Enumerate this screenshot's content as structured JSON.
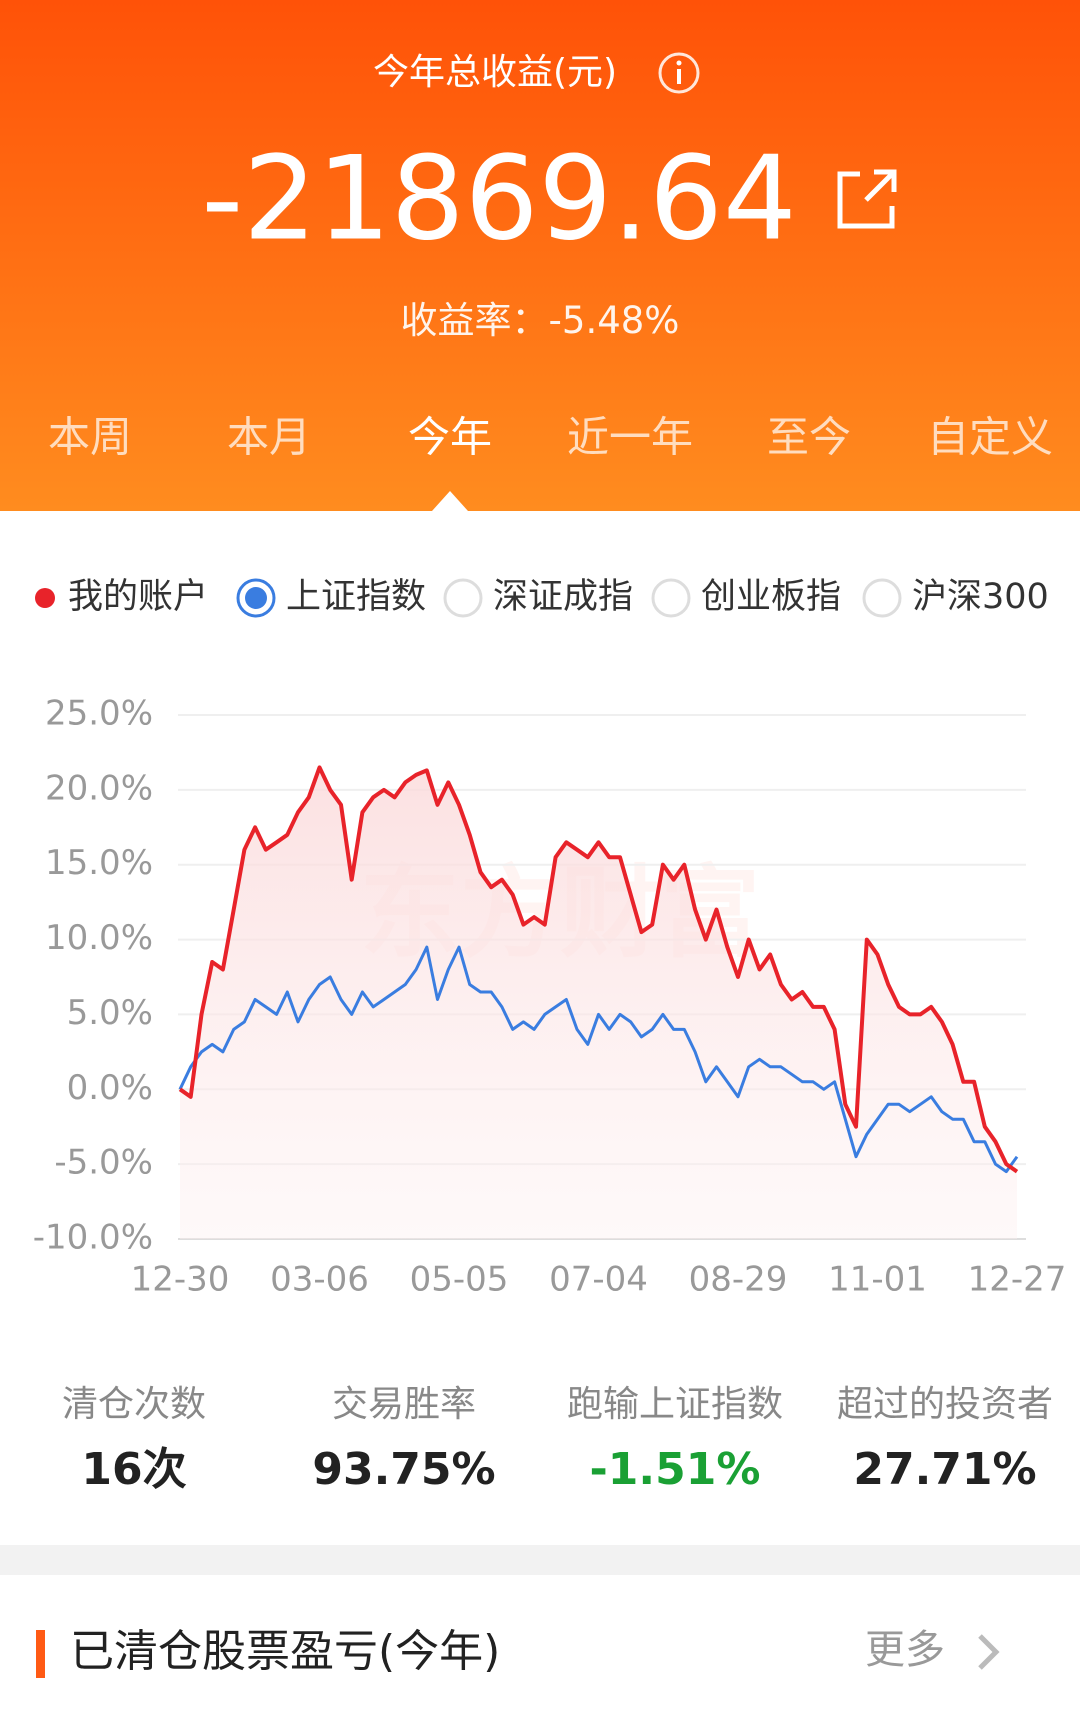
{
  "header": {
    "title": "今年总收益(元)",
    "amount": "-21869.64",
    "rate_label": "收益率：",
    "rate": "-5.48%"
  },
  "tabs": [
    "本周",
    "本月",
    "今年",
    "近一年",
    "至今",
    "自定义"
  ],
  "active_tab": 2,
  "index_options": [
    "深证成指",
    "创业板指",
    "沪深300"
  ],
  "chart_data": {
    "type": "line",
    "watermark": "东方财富",
    "categories": [
      "12-30",
      null,
      null,
      null,
      null,
      null,
      null,
      null,
      null,
      null,
      null,
      null,
      null,
      "03-06",
      null,
      null,
      null,
      null,
      null,
      null,
      null,
      null,
      null,
      null,
      null,
      null,
      "05-05",
      null,
      null,
      null,
      null,
      null,
      null,
      null,
      null,
      null,
      null,
      null,
      null,
      "07-04",
      null,
      null,
      null,
      null,
      null,
      null,
      null,
      null,
      null,
      null,
      null,
      null,
      "08-29",
      null,
      null,
      null,
      null,
      null,
      null,
      null,
      null,
      null,
      null,
      null,
      null,
      "11-01",
      null,
      null,
      null,
      null,
      null,
      null,
      null,
      null,
      null,
      null,
      null,
      null,
      "12-27"
    ],
    "series": [
      {
        "name": "我的账户",
        "color": "#e8232a",
        "values": [
          0,
          -0.5,
          5,
          8.5,
          8,
          12,
          16,
          17.5,
          16,
          16.5,
          17,
          18.5,
          19.5,
          21.5,
          20,
          19,
          14,
          18.5,
          19.5,
          20,
          19.5,
          20.5,
          21,
          21.3,
          19,
          20.5,
          19,
          17,
          14.5,
          13.5,
          14,
          13,
          11,
          11.5,
          11,
          15.5,
          16.5,
          16,
          15.5,
          16.5,
          15.5,
          15.5,
          13,
          10.5,
          11,
          15,
          14,
          15,
          12,
          10,
          12,
          9.5,
          7.5,
          10,
          8,
          9,
          7,
          6,
          6.5,
          5.5,
          5.5,
          4,
          -1,
          -2.5,
          10,
          9,
          7,
          5.5,
          5,
          5,
          5.5,
          4.5,
          3,
          0.5,
          0.5,
          -2.5,
          -3.5,
          -5,
          -5.5
        ]
      },
      {
        "name": "上证指数",
        "color": "#3a7de0",
        "values": [
          0,
          1.5,
          2.5,
          3,
          2.5,
          4,
          4.5,
          6,
          5.5,
          5,
          6.5,
          4.5,
          6,
          7,
          7.5,
          6,
          5,
          6.5,
          5.5,
          6,
          6.5,
          7,
          8,
          9.5,
          6,
          8,
          9.5,
          7,
          6.5,
          6.5,
          5.5,
          4,
          4.5,
          4,
          5,
          5.5,
          6,
          4,
          3,
          5,
          4,
          5,
          4.5,
          3.5,
          4,
          5,
          4,
          4,
          2.5,
          0.5,
          1.5,
          0.5,
          -0.5,
          1.5,
          2,
          1.5,
          1.5,
          1,
          0.5,
          0.5,
          0,
          0.5,
          -2,
          -4.5,
          -3,
          -2,
          -1,
          -1,
          -1.5,
          -1,
          -0.5,
          -1.5,
          -2,
          -2,
          -3.5,
          -3.5,
          -5,
          -5.5,
          -4.5
        ]
      }
    ],
    "ylim": [
      -10,
      25
    ],
    "yticks": [
      {
        "value": -10,
        "label": "-10.0%"
      },
      {
        "value": -5,
        "label": "-5.0%"
      },
      {
        "value": 0,
        "label": "0.0%"
      },
      {
        "value": 5,
        "label": "5.0%"
      },
      {
        "value": 10,
        "label": "10.0%"
      },
      {
        "value": 15,
        "label": "15.0%"
      },
      {
        "value": 20,
        "label": "20.0%"
      },
      {
        "value": 25,
        "label": "25.0%"
      }
    ],
    "grid": true
  },
  "stats": [
    {
      "label": "清仓次数",
      "value": "16次",
      "color": "#222222"
    },
    {
      "label": "交易胜率",
      "value": "93.75%",
      "color": "#222222"
    },
    {
      "label": "跑输上证指数",
      "value": "-1.51%",
      "color": "#1aa034"
    },
    {
      "label": "超过的投资者",
      "value": "27.71%",
      "color": "#222222"
    }
  ],
  "section": {
    "title": "已清仓股票盈亏(今年)",
    "more": "更多"
  }
}
